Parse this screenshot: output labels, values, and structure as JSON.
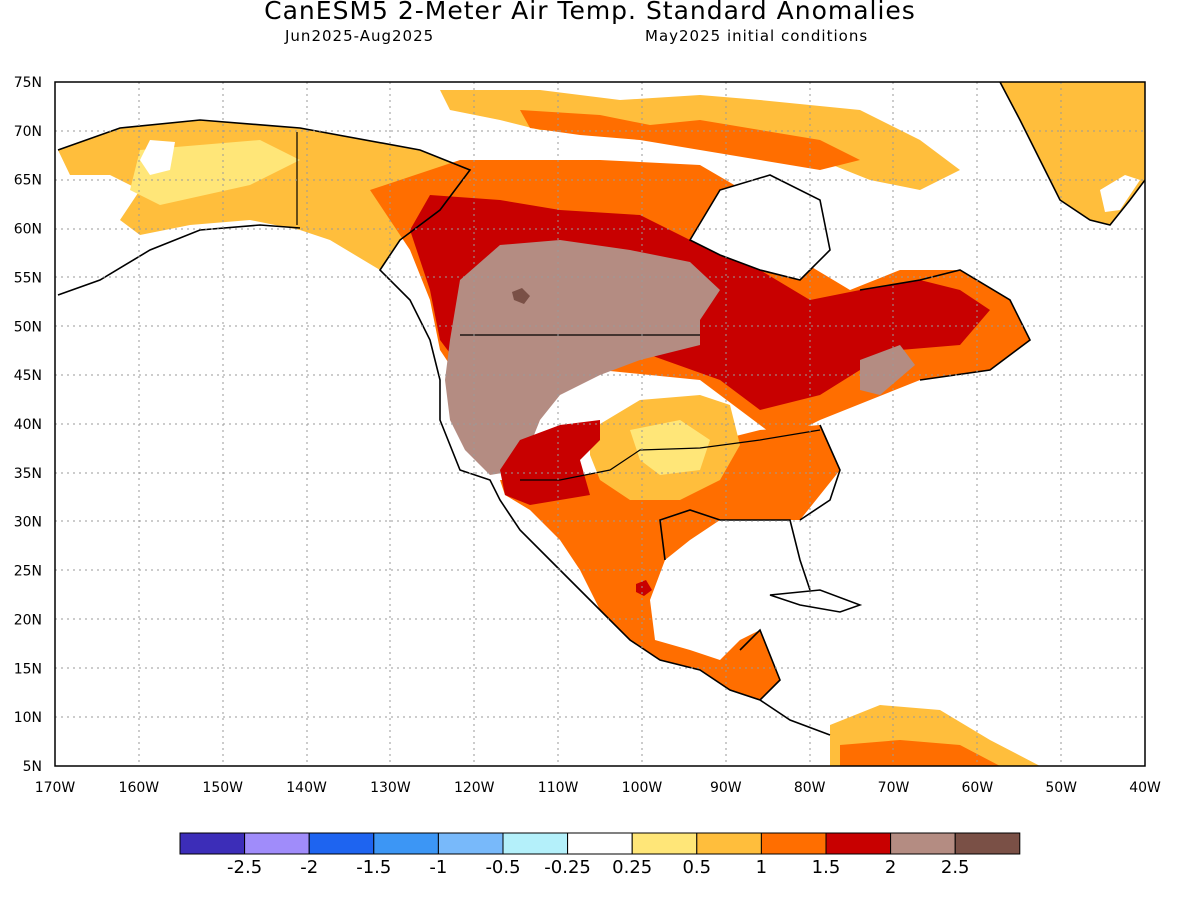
{
  "title": "CanESM5 2-Meter Air Temp. Standard Anomalies",
  "subtitle_left": "Jun2025-Aug2025",
  "subtitle_right": "May2025 initial conditions",
  "lat_labels": [
    "75N",
    "70N",
    "65N",
    "60N",
    "55N",
    "50N",
    "45N",
    "40N",
    "35N",
    "30N",
    "25N",
    "20N",
    "15N",
    "10N",
    "5N"
  ],
  "lon_labels": [
    "170W",
    "160W",
    "150W",
    "140W",
    "130W",
    "120W",
    "110W",
    "100W",
    "90W",
    "80W",
    "70W",
    "60W",
    "50W",
    "40W"
  ],
  "colorbar": {
    "colors": [
      "#3c2db8",
      "#a08cfa",
      "#1e64f0",
      "#3c96f5",
      "#78b9fa",
      "#b4f0fa",
      "#ffffff",
      "#ffe678",
      "#ffbe3c",
      "#ff6e00",
      "#c80000",
      "#b48c82",
      "#7a5046"
    ],
    "tick_labels": [
      "-2.5",
      "-2",
      "-1.5",
      "-1",
      "-0.5",
      "-0.25",
      "0.25",
      "0.5",
      "1",
      "1.5",
      "2",
      "2.5"
    ]
  },
  "colors": {
    "ocean": "#ffffff",
    "grid": "#9a9a9a"
  }
}
